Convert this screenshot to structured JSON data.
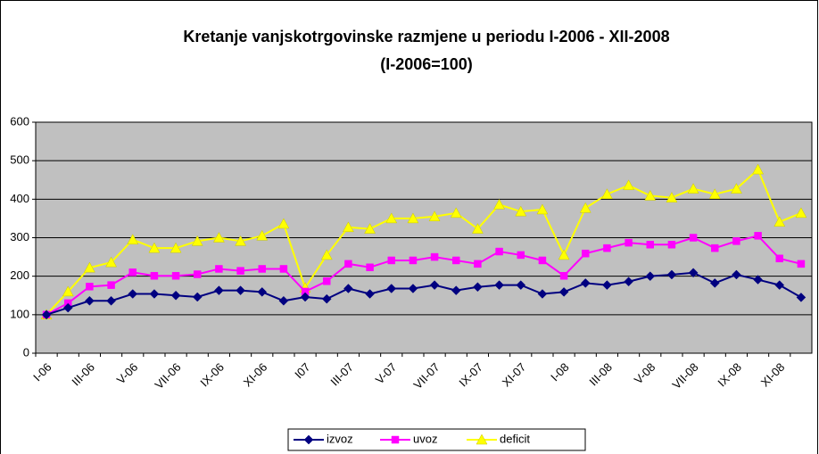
{
  "chart_data": {
    "type": "line",
    "title": "Kretanje vanjskotrgovinske razmjene u periodu I-2006 - XII-2008",
    "subtitle": "(I-2006=100)",
    "categories": [
      "I-06",
      null,
      "III-06",
      null,
      "V-06",
      null,
      "VII-06",
      null,
      "IX-06",
      null,
      "XI-06",
      null,
      "I07",
      null,
      "III-07",
      null,
      "V-07",
      null,
      "VII-07",
      null,
      "IX-07",
      null,
      "XI-07",
      null,
      "I-08",
      null,
      "III-08",
      null,
      "V-08",
      null,
      "VII-08",
      null,
      "IX-08",
      null,
      "XI-08",
      null
    ],
    "series": [
      {
        "name": "izvoz",
        "color": "#000080",
        "marker": "diamond",
        "values": [
          100,
          118,
          136,
          136,
          154,
          154,
          150,
          146,
          163,
          163,
          159,
          136,
          146,
          141,
          168,
          154,
          168,
          168,
          177,
          163,
          172,
          177,
          177,
          154,
          159,
          182,
          177,
          186,
          200,
          204,
          209,
          182,
          204,
          191,
          177,
          145
        ]
      },
      {
        "name": "uvoz",
        "color": "#ff00ff",
        "marker": "square",
        "values": [
          100,
          130,
          173,
          177,
          210,
          201,
          201,
          205,
          219,
          214,
          219,
          219,
          160,
          187,
          232,
          223,
          241,
          241,
          250,
          241,
          232,
          264,
          255,
          241,
          201,
          259,
          273,
          287,
          282,
          282,
          300,
          273,
          291,
          305,
          246,
          232
        ]
      },
      {
        "name": "deficit",
        "color": "#ffff00",
        "marker": "triangle",
        "values": [
          100,
          160,
          222,
          236,
          295,
          273,
          273,
          291,
          300,
          291,
          305,
          336,
          170,
          255,
          327,
          323,
          350,
          350,
          355,
          364,
          323,
          386,
          368,
          373,
          255,
          377,
          413,
          436,
          409,
          404,
          427,
          413,
          427,
          477,
          341,
          364
        ]
      }
    ],
    "ylim": [
      0,
      600
    ],
    "yticks": [
      0,
      100,
      200,
      300,
      400,
      500,
      600
    ],
    "grid": true,
    "plot_background": "#c0c0c0",
    "legend": "bottom"
  }
}
